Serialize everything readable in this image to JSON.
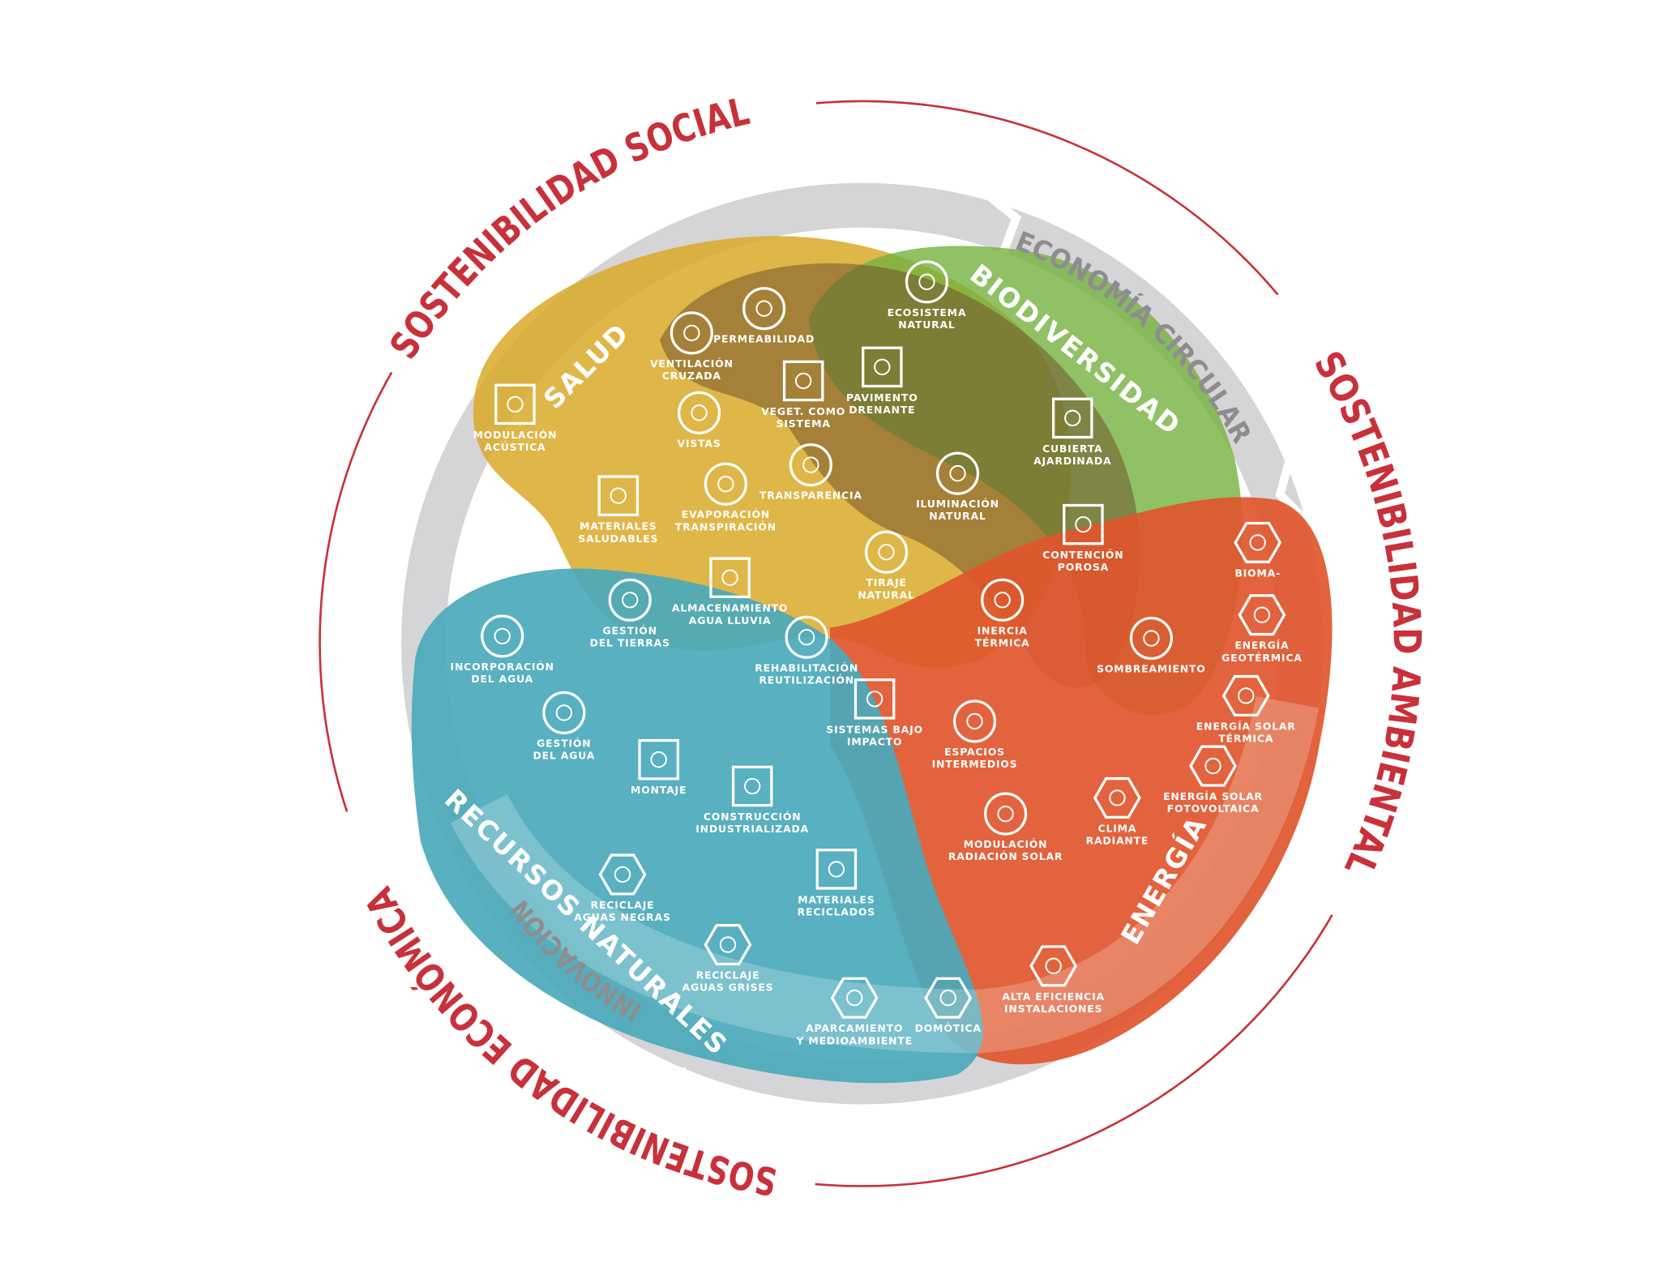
{
  "outer_labels": [
    "SOSTENIBILIDAD SOCIAL",
    "SOSTENIBILIDAD AMBIENTAL",
    "SOSTENIBILIDAD ECONÓMICA"
  ],
  "ring_labels": [
    "ECONOMÍA CIRCULAR",
    "INNOVACIÓN"
  ],
  "zones": [
    "SALUD",
    "BIODIVERSIDAD",
    "ENERGÍA",
    "RECURSOS NATURALES"
  ],
  "nodes": [
    {
      "lines": [
        "MODULACIÓN",
        "ACÚSTICA"
      ]
    },
    {
      "lines": [
        "VENTILACIÓN",
        "CRUZADA"
      ]
    },
    {
      "lines": [
        "PERMEABILIDAD"
      ]
    },
    {
      "lines": [
        "VEGET. COMO",
        "SISTEMA"
      ]
    },
    {
      "lines": [
        "PAVIMENTO",
        "DRENANTE"
      ]
    },
    {
      "lines": [
        "ECOSISTEMA",
        "NATURAL"
      ]
    },
    {
      "lines": [
        "CUBIERTA",
        "AJARDINADA"
      ]
    },
    {
      "lines": [
        "VISTAS"
      ]
    },
    {
      "lines": [
        "TRANSPARENCIA"
      ]
    },
    {
      "lines": [
        "EVAPORACIÓN",
        "TRANSPIRACIÓN"
      ]
    },
    {
      "lines": [
        "ILUMINACIÓN",
        "NATURAL"
      ]
    },
    {
      "lines": [
        "MATERIALES",
        "SALUDABLES"
      ]
    },
    {
      "lines": [
        "CONTENCIÓN",
        "POROSA"
      ]
    },
    {
      "lines": [
        "TIRAJE",
        "NATURAL"
      ]
    },
    {
      "lines": [
        "ALMACENAMIENTO",
        "AGUA LLUVIA"
      ]
    },
    {
      "lines": [
        "GESTIÓN",
        "DEL TIERRAS"
      ]
    },
    {
      "lines": [
        "INERCIA",
        "TÉRMICA"
      ]
    },
    {
      "lines": [
        "SOMBREAMIENTO"
      ]
    },
    {
      "lines": [
        "INCORPORACIÓN",
        "DEL AGUA"
      ]
    },
    {
      "lines": [
        "REHABILITACIÓN",
        "REUTILIZACIÓN"
      ]
    },
    {
      "lines": [
        "GESTIÓN",
        "DEL AGUA"
      ]
    },
    {
      "lines": [
        "SISTEMAS BAJO",
        "IMPACTO"
      ]
    },
    {
      "lines": [
        "ESPACIOS",
        "INTERMEDIOS"
      ]
    },
    {
      "lines": [
        "MONTAJE"
      ]
    },
    {
      "lines": [
        "CONSTRUCCIÓN",
        "INDUSTRIALIZADA"
      ]
    },
    {
      "lines": [
        "MODULACIÓN",
        "RADIACIÓN SOLAR"
      ]
    },
    {
      "lines": [
        "CLIMA",
        "RADIANTE"
      ]
    },
    {
      "lines": [
        "BIOMA-"
      ]
    },
    {
      "lines": [
        "ENERGÍA",
        "GEOTÉRMICA"
      ]
    },
    {
      "lines": [
        "ENERGÍA SOLAR",
        "TÉRMICA"
      ]
    },
    {
      "lines": [
        "ENERGÍA SOLAR",
        "FOTOVOLTAICA"
      ]
    },
    {
      "lines": [
        "RECICLAJE",
        "AGUAS NEGRAS"
      ]
    },
    {
      "lines": [
        "MATERIALES",
        "RECICLADOS"
      ]
    },
    {
      "lines": [
        "RECICLAJE",
        "AGUAS GRISES"
      ]
    },
    {
      "lines": [
        "APARCAMIENTO",
        "Y MEDIOAMBIENTE"
      ]
    },
    {
      "lines": [
        "DOMÓTICA"
      ]
    },
    {
      "lines": [
        "ALTA EFICIENCIA",
        "INSTALACIONES"
      ]
    }
  ]
}
